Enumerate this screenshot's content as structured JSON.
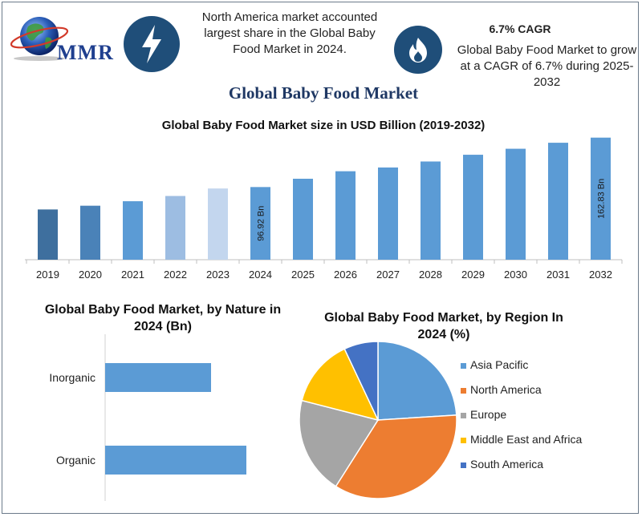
{
  "brand": {
    "name": "MMR"
  },
  "header": {
    "highlight_text": "North America market accounted largest share in the Global Baby Food Market in 2024.",
    "cagr_title": "6.7% CAGR",
    "cagr_text": "Global Baby Food Market to grow at a CAGR of 6.7% during 2025-2032",
    "icons": [
      "lightning-bolt-icon",
      "flame-icon"
    ]
  },
  "main_title": "Global Baby Food Market",
  "chart_data": [
    {
      "type": "bar",
      "title": "Global Baby Food Market size in USD Billion (2019-2032)",
      "categories": [
        "2019",
        "2020",
        "2021",
        "2022",
        "2023",
        "2024",
        "2025",
        "2026",
        "2027",
        "2028",
        "2029",
        "2030",
        "2031",
        "2032"
      ],
      "values": [
        67,
        72,
        78,
        85,
        95,
        96.92,
        108,
        118,
        123,
        131,
        140,
        148,
        156,
        162.83
      ],
      "data_labels": {
        "2024": "96.92 Bn",
        "2032": "162.83 Bn"
      },
      "colors": [
        "#3e6f9e",
        "#4a82b8",
        "#5b9bd5",
        "#9dbde2",
        "#c3d6ee",
        "#5b9bd5",
        "#5b9bd5",
        "#5b9bd5",
        "#5b9bd5",
        "#5b9bd5",
        "#5b9bd5",
        "#5b9bd5",
        "#5b9bd5",
        "#5b9bd5"
      ],
      "ylim": [
        0,
        170
      ],
      "grid": false
    },
    {
      "type": "bar",
      "orientation": "horizontal",
      "title": "Global Baby Food Market, by Nature in 2024 (Bn)",
      "categories": [
        "Inorganic",
        "Organic"
      ],
      "values": [
        33,
        44
      ],
      "xlim": [
        0,
        60
      ],
      "color": "#5b9bd5"
    },
    {
      "type": "pie",
      "title": "Global Baby Food Market, by Region In 2024 (%)",
      "labels": [
        "Asia Pacific",
        "North America",
        "Europe",
        "Middle East and Africa",
        "South America"
      ],
      "values": [
        24,
        35,
        20,
        14,
        7
      ],
      "colors": [
        "#5b9bd5",
        "#ed7d31",
        "#a5a5a5",
        "#ffc000",
        "#4472c4"
      ],
      "legend": "right"
    }
  ]
}
